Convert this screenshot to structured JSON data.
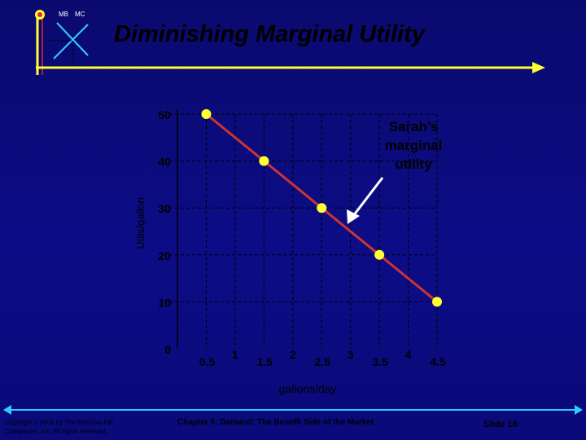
{
  "slide": {
    "logo_labels": [
      "MB",
      "MC"
    ],
    "title": "Diminishing Marginal Utility",
    "footer": {
      "copyright_line1": "Copyright c 2004 by The McGraw-Hill",
      "copyright_line2": "Companies, Inc.  All rights reserved.",
      "chapter": "Chapter 5: Demand: The Benefit Side of the Market",
      "slide_number": "Slide 18"
    },
    "colors": {
      "background": "#0c0c86",
      "accent_yellow": "#ffff33",
      "logo_red": "#ee2222",
      "logo_cyan": "#33ccff",
      "curve": "#cc3333",
      "point": "#ffff33"
    }
  },
  "chart_data": {
    "type": "line",
    "title": "",
    "xlabel": "gallons/day",
    "ylabel": "Utils/gallon",
    "x_tick_labels": [
      "0.5",
      "1",
      "1.5",
      "2",
      "2.5",
      "3",
      "3.5",
      "4",
      "4.5"
    ],
    "y_tick_labels": [
      "0",
      "10",
      "20",
      "30",
      "40",
      "50"
    ],
    "xlim": [
      0,
      4.5
    ],
    "ylim": [
      0,
      50
    ],
    "grid": "dashed",
    "series": [
      {
        "name": "Sarah’s marginal utility",
        "x": [
          0.5,
          1.5,
          2.5,
          3.5,
          4.5
        ],
        "y": [
          50,
          40,
          30,
          20,
          10
        ]
      }
    ],
    "annotation": {
      "lines": [
        "Sarah’s",
        "marginal",
        "utility"
      ]
    }
  }
}
